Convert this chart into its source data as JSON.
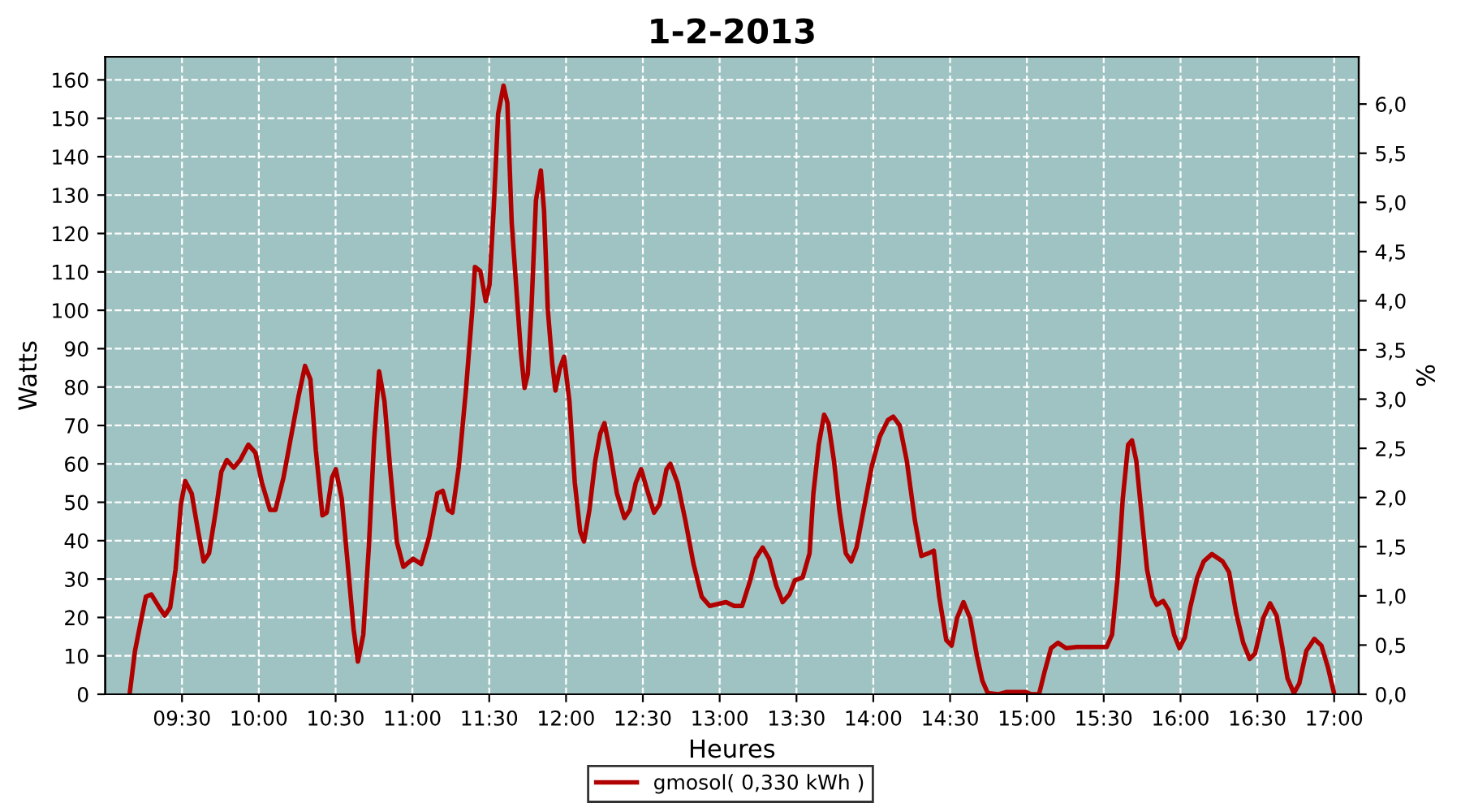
{
  "chart_data": {
    "type": "line",
    "title": "1-2-2013",
    "xlabel": "Heures",
    "ylabel": "Watts",
    "y2label": "%",
    "xlim": [
      9.0,
      17.16
    ],
    "xticks": [
      {
        "value": 9.5,
        "label": "09:30"
      },
      {
        "value": 10.0,
        "label": "10:00"
      },
      {
        "value": 10.5,
        "label": "10:30"
      },
      {
        "value": 11.0,
        "label": "11:00"
      },
      {
        "value": 11.5,
        "label": "11:30"
      },
      {
        "value": 12.0,
        "label": "12:00"
      },
      {
        "value": 12.5,
        "label": "12:30"
      },
      {
        "value": 13.0,
        "label": "13:00"
      },
      {
        "value": 13.5,
        "label": "13:30"
      },
      {
        "value": 14.0,
        "label": "14:00"
      },
      {
        "value": 14.5,
        "label": "14:30"
      },
      {
        "value": 15.0,
        "label": "15:00"
      },
      {
        "value": 15.5,
        "label": "15:30"
      },
      {
        "value": 16.0,
        "label": "16:00"
      },
      {
        "value": 16.5,
        "label": "16:30"
      },
      {
        "value": 17.0,
        "label": "17:00"
      }
    ],
    "ylim": [
      0,
      166
    ],
    "yticks": [
      0,
      10,
      20,
      30,
      40,
      50,
      60,
      70,
      80,
      90,
      100,
      110,
      120,
      130,
      140,
      150,
      160
    ],
    "y2lim": [
      0,
      6.48
    ],
    "y2ticks": [
      {
        "value": 0,
        "label": "0,0"
      },
      {
        "value": 0.5,
        "label": "0,5"
      },
      {
        "value": 1.0,
        "label": "1,0"
      },
      {
        "value": 1.5,
        "label": "1,5"
      },
      {
        "value": 2.0,
        "label": "2,0"
      },
      {
        "value": 2.5,
        "label": "2,5"
      },
      {
        "value": 3.0,
        "label": "3,0"
      },
      {
        "value": 3.5,
        "label": "3,5"
      },
      {
        "value": 4.0,
        "label": "4,0"
      },
      {
        "value": 4.5,
        "label": "4,5"
      },
      {
        "value": 5.0,
        "label": "5,0"
      },
      {
        "value": 5.5,
        "label": "5,5"
      },
      {
        "value": 6.0,
        "label": "6,0"
      }
    ],
    "grid": true,
    "legend": "bottom",
    "series": [
      {
        "name": "gmosol( 0,330 kWh )",
        "color": "#b00000",
        "x": [
          9.159,
          9.194,
          9.229,
          9.265,
          9.3,
          9.352,
          9.388,
          9.423,
          9.458,
          9.493,
          9.521,
          9.563,
          9.605,
          9.641,
          9.676,
          9.721,
          9.756,
          9.792,
          9.837,
          9.879,
          9.932,
          9.978,
          10.02,
          10.073,
          10.108,
          10.161,
          10.213,
          10.259,
          10.301,
          10.336,
          10.371,
          10.414,
          10.442,
          10.477,
          10.501,
          10.54,
          10.582,
          10.617,
          10.645,
          10.68,
          10.716,
          10.751,
          10.783,
          10.818,
          10.857,
          10.899,
          10.941,
          11.004,
          11.057,
          11.109,
          11.162,
          11.197,
          11.232,
          11.26,
          11.302,
          11.348,
          11.39,
          11.407,
          11.442,
          11.477,
          11.502,
          11.53,
          11.558,
          11.593,
          11.618,
          11.646,
          11.681,
          11.706,
          11.73,
          11.751,
          11.776,
          11.804,
          11.836,
          11.857,
          11.881,
          11.91,
          11.931,
          11.959,
          11.987,
          12.022,
          12.057,
          12.092,
          12.117,
          12.152,
          12.19,
          12.222,
          12.25,
          12.285,
          12.331,
          12.38,
          12.415,
          12.454,
          12.489,
          12.524,
          12.573,
          12.609,
          12.654,
          12.679,
          12.725,
          12.777,
          12.83,
          12.883,
          12.935,
          13.041,
          13.094,
          13.146,
          13.199,
          13.234,
          13.28,
          13.322,
          13.368,
          13.41,
          13.455,
          13.49,
          13.54,
          13.585,
          13.61,
          13.645,
          13.68,
          13.708,
          13.744,
          13.779,
          13.821,
          13.856,
          13.891,
          13.937,
          13.99,
          14.042,
          14.095,
          14.13,
          14.172,
          14.218,
          14.271,
          14.313,
          14.359,
          14.394,
          14.429,
          14.475,
          14.51,
          14.545,
          14.587,
          14.63,
          14.675,
          14.71,
          14.745,
          14.816,
          14.869,
          14.939,
          14.991,
          15.027,
          15.079,
          15.114,
          15.157,
          15.202,
          15.255,
          15.325,
          15.43,
          15.519,
          15.554,
          15.589,
          15.624,
          15.659,
          15.684,
          15.712,
          15.747,
          15.782,
          15.817,
          15.845,
          15.887,
          15.923,
          15.958,
          15.993,
          16.028,
          16.063,
          16.109,
          16.151,
          16.204,
          16.274,
          16.316,
          16.362,
          16.408,
          16.45,
          16.485,
          16.538,
          16.583,
          16.625,
          16.661,
          16.696,
          16.738,
          16.773,
          16.819,
          16.871,
          16.917,
          16.959,
          17.001
        ],
        "values": [
          0,
          11.3,
          18.4,
          25.4,
          26,
          22.6,
          20.5,
          22.6,
          32.5,
          49.5,
          55.5,
          52.3,
          42.4,
          34.6,
          36.7,
          48,
          57.9,
          61,
          59,
          61,
          65,
          62.9,
          55.1,
          48,
          48,
          56.5,
          67.8,
          77.7,
          85.5,
          82,
          63.6,
          46.6,
          47.3,
          56.5,
          58.6,
          50.9,
          32.5,
          17,
          8.5,
          15.5,
          38.2,
          66.4,
          84.1,
          76.3,
          57.9,
          39.6,
          33.2,
          35.3,
          33.9,
          41,
          52.3,
          53,
          48,
          47.3,
          59.3,
          79.1,
          100.3,
          111.3,
          110.2,
          102.4,
          106.7,
          127.2,
          151.2,
          158.5,
          154,
          123,
          103.1,
          89,
          79.8,
          83.4,
          101.7,
          128.6,
          136.4,
          125.8,
          100.3,
          86.2,
          79.1,
          84.8,
          87.9,
          76.3,
          55.1,
          42.4,
          39.8,
          48,
          60.8,
          67.8,
          70.6,
          63.6,
          52.3,
          45.9,
          48,
          55.1,
          58.6,
          53.7,
          47.3,
          49.5,
          58.6,
          60,
          55.1,
          45.2,
          33.9,
          25.4,
          23,
          24,
          23,
          23,
          29.7,
          35.3,
          38.2,
          35.3,
          28.3,
          24,
          26.1,
          29.7,
          30.4,
          36.7,
          52.3,
          65,
          72.8,
          70.6,
          60.8,
          48,
          36.7,
          34.6,
          38.2,
          48,
          59.3,
          67.1,
          71.4,
          72.3,
          70,
          60.8,
          45.2,
          36,
          36.7,
          37.4,
          25.4,
          14.1,
          12.7,
          19.8,
          24,
          19.8,
          9.9,
          3.5,
          0.3,
          0,
          0.6,
          0.6,
          0.6,
          0,
          0,
          5.7,
          12,
          13.4,
          12,
          12.3,
          12.3,
          12.3,
          15.5,
          29.7,
          50.9,
          65,
          66.1,
          60.8,
          46.6,
          32.5,
          25.4,
          23.3,
          24.3,
          21.9,
          15.5,
          12,
          14.8,
          22.6,
          30.4,
          34.6,
          36.5,
          34.6,
          31.8,
          21.2,
          13.4,
          9.2,
          10.6,
          19.8,
          23.7,
          20.5,
          12.7,
          4.2,
          0.3,
          2.8,
          11.3,
          14.4,
          12.7,
          7.1,
          0
        ]
      }
    ]
  }
}
